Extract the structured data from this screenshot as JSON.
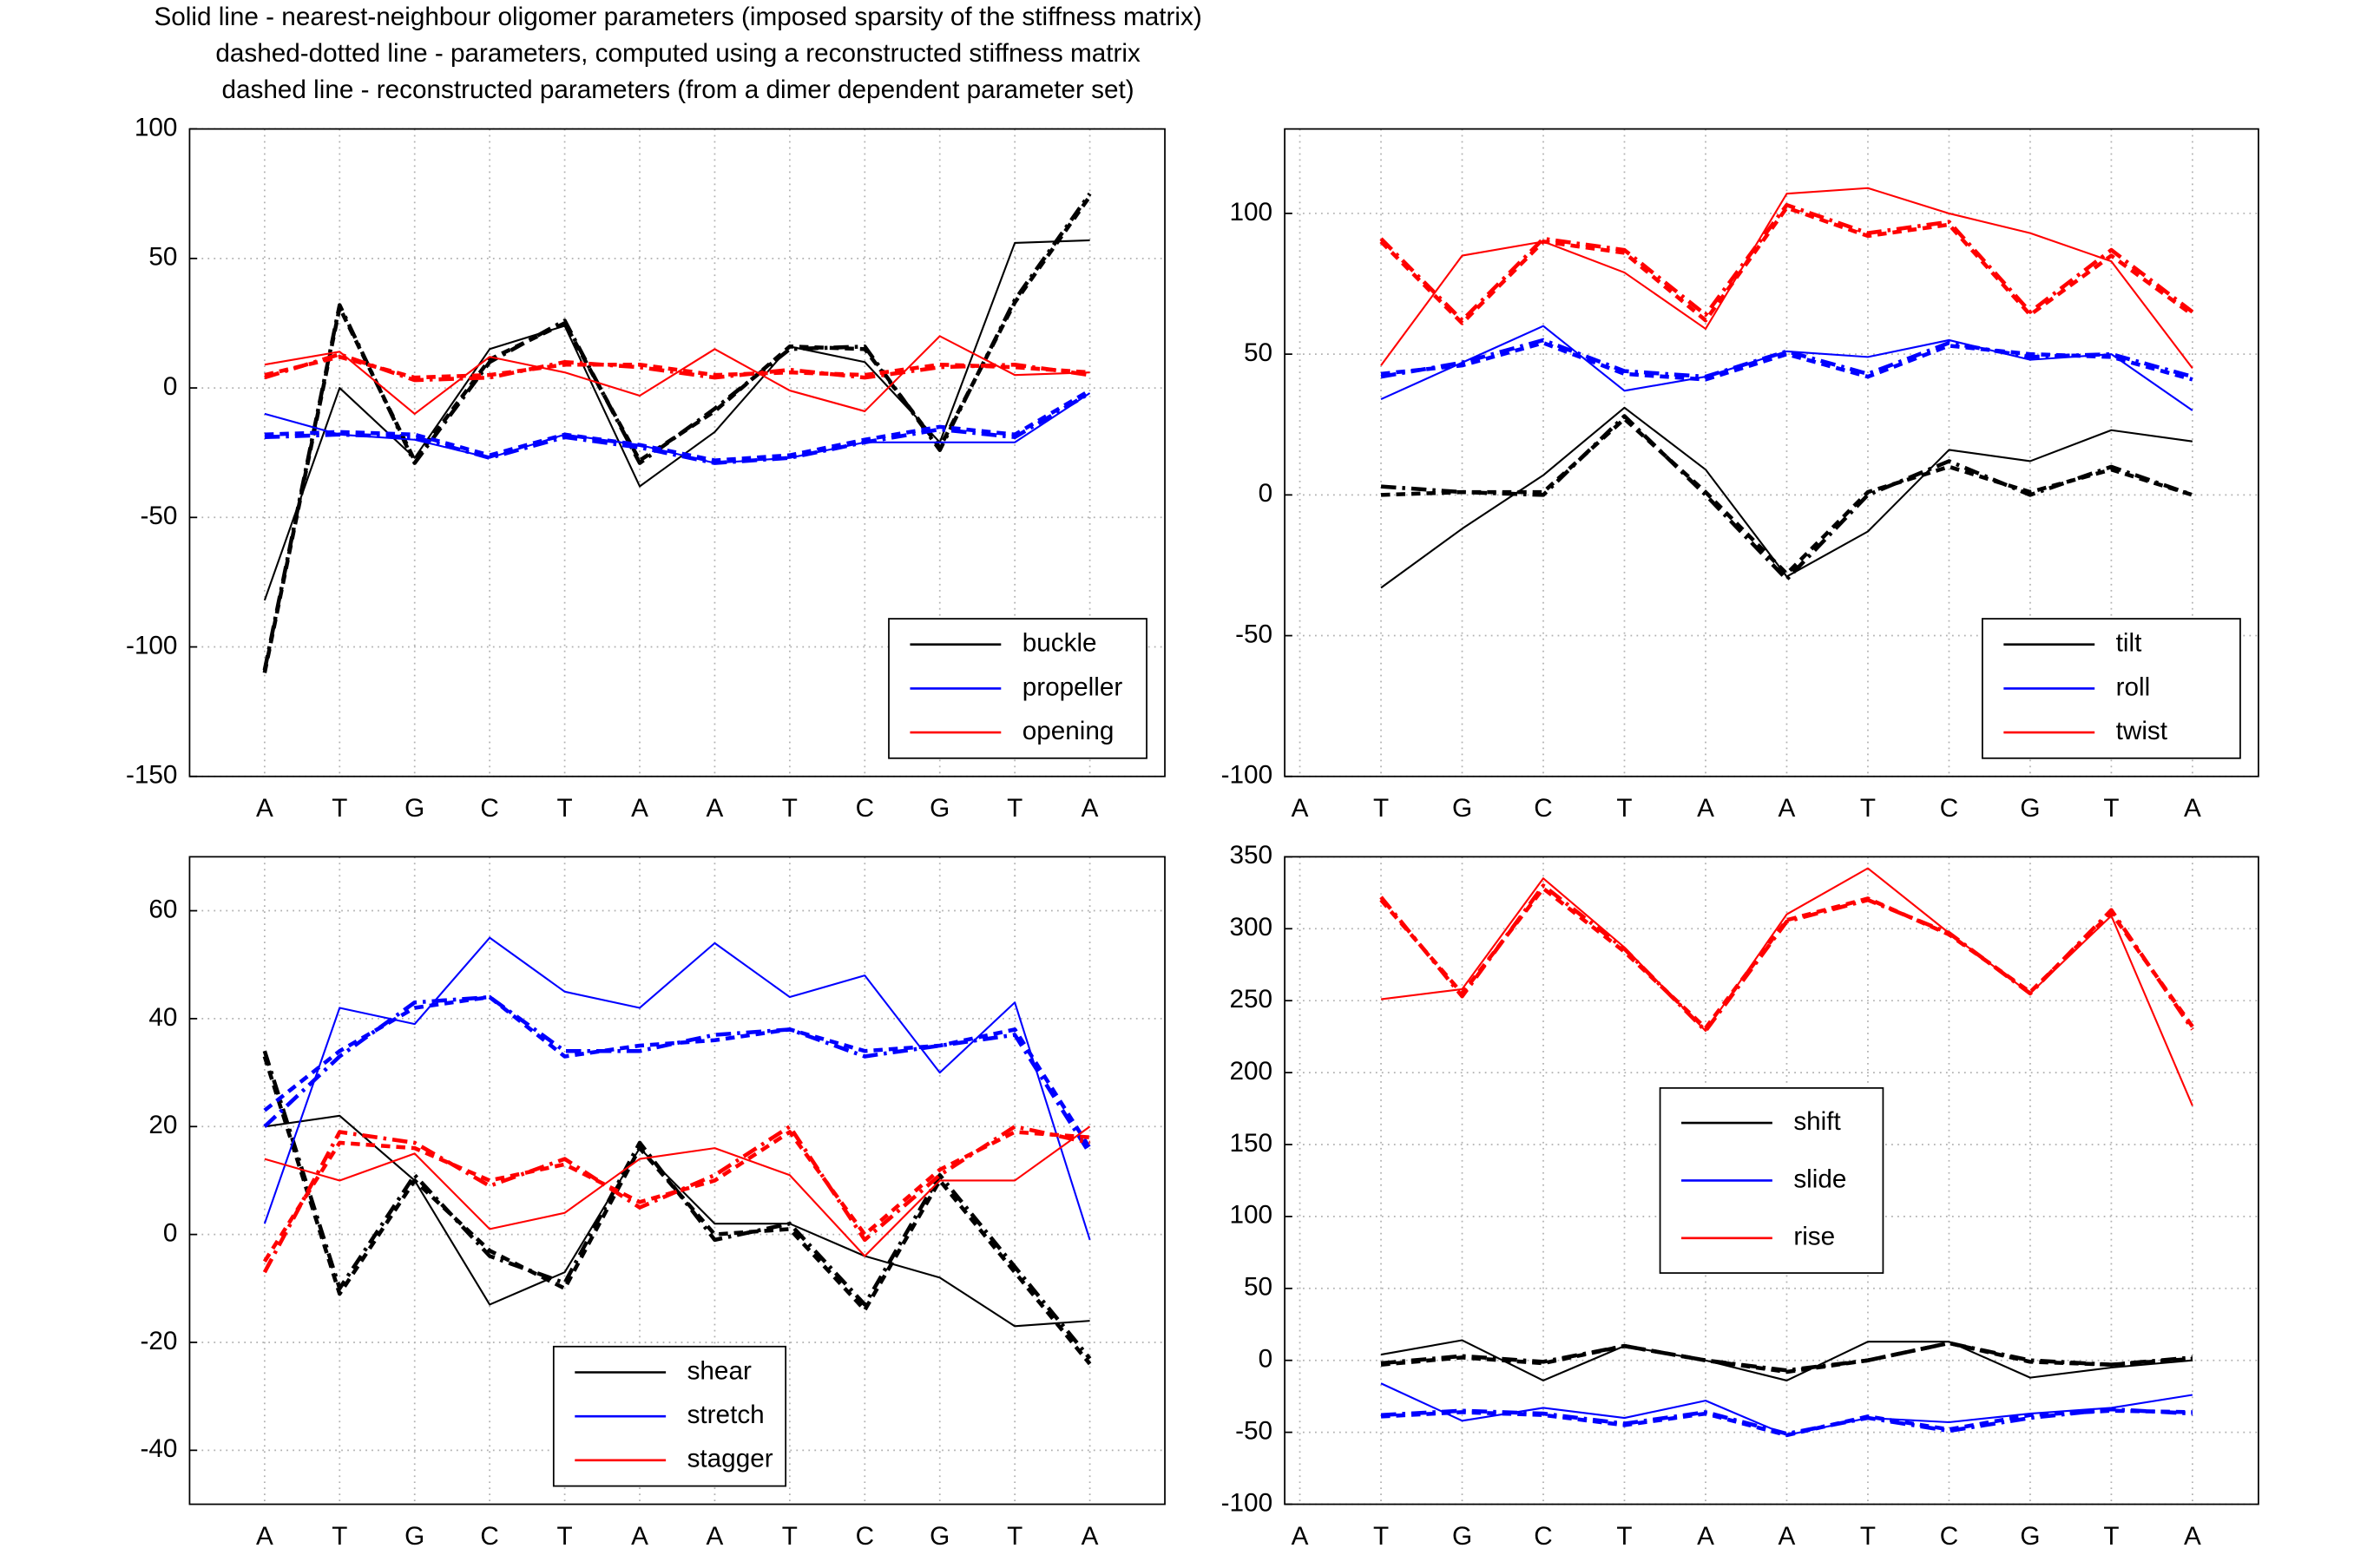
{
  "figure_title": [
    "Solid line - nearest-neighbour oligomer parameters (imposed sparsity of the stiffness matrix)",
    "dashed-dotted line - parameters, computed using a reconstructed stiffness matrix",
    "dashed line - reconstructed parameters (from a dimer dependent parameter set)"
  ],
  "chart_data": [
    {
      "type": "line",
      "categories": [
        "A",
        "T",
        "G",
        "C",
        "T",
        "A",
        "A",
        "T",
        "C",
        "G",
        "T",
        "A"
      ],
      "ylim": [
        -150,
        100
      ],
      "yticks": [
        -150,
        -100,
        -50,
        0,
        50,
        100
      ],
      "grid": true,
      "legend": "lower right",
      "series": [
        {
          "name": "buckle",
          "color": "#000000",
          "values": [
            -82,
            0,
            -27,
            15,
            24,
            -38,
            -17,
            16,
            10,
            -21,
            56,
            57
          ],
          "values_dashdot": [
            -109,
            32,
            -29,
            10,
            26,
            -29,
            -8,
            15,
            16,
            -24,
            34,
            75
          ],
          "values_dashed": [
            -110,
            31,
            -28,
            11,
            25,
            -28,
            -9,
            16,
            15,
            -23,
            33,
            74
          ]
        },
        {
          "name": "propeller",
          "color": "#0000ff",
          "values": [
            -10,
            -18,
            -20,
            -27,
            -18,
            -22,
            -29,
            -27,
            -21,
            -21,
            -21,
            -2
          ],
          "values_dashdot": [
            -19,
            -18,
            -19,
            -27,
            -19,
            -23,
            -29,
            -27,
            -21,
            -16,
            -19,
            -2
          ],
          "values_dashed": [
            -18,
            -17,
            -18,
            -26,
            -18,
            -22,
            -28,
            -26,
            -20,
            -15,
            -18,
            -1
          ]
        },
        {
          "name": "opening",
          "color": "#ff0000",
          "values": [
            9,
            14,
            -10,
            12,
            6,
            -3,
            15,
            -1,
            -9,
            20,
            5,
            6
          ],
          "values_dashdot": [
            4,
            13,
            3,
            4,
            10,
            8,
            4,
            7,
            4,
            8,
            9,
            5
          ],
          "values_dashed": [
            5,
            12,
            4,
            5,
            9,
            9,
            5,
            6,
            5,
            9,
            8,
            6
          ]
        }
      ]
    },
    {
      "type": "line",
      "categories": [
        "A",
        "T",
        "G",
        "C",
        "T",
        "A",
        "A",
        "T",
        "C",
        "G",
        "T",
        "A"
      ],
      "ylim": [
        -100,
        130
      ],
      "yticks": [
        -100,
        -50,
        0,
        50,
        100
      ],
      "grid": true,
      "legend": "lower right",
      "series": [
        {
          "name": "tilt",
          "color": "#000000",
          "values": [
            null,
            -33,
            -12,
            7,
            31,
            9,
            -29,
            -13,
            16,
            12,
            23,
            19
          ],
          "values_dashdot": [
            null,
            3,
            1,
            0,
            28,
            0,
            -30,
            0,
            12,
            0,
            10,
            0
          ],
          "values_dashed": [
            null,
            0,
            1,
            1,
            27,
            1,
            -28,
            1,
            10,
            1,
            9,
            0
          ]
        },
        {
          "name": "roll",
          "color": "#0000ff",
          "values": [
            null,
            34,
            47,
            60,
            37,
            42,
            51,
            49,
            55,
            48,
            50,
            30
          ],
          "values_dashdot": [
            null,
            42,
            47,
            55,
            44,
            42,
            51,
            43,
            54,
            49,
            50,
            42
          ],
          "values_dashed": [
            null,
            43,
            46,
            54,
            43,
            41,
            50,
            42,
            53,
            50,
            49,
            41
          ]
        },
        {
          "name": "twist",
          "color": "#ff0000",
          "values": [
            null,
            46,
            85,
            90,
            79,
            59,
            107,
            109,
            100,
            93,
            83,
            45
          ],
          "values_dashdot": [
            null,
            91,
            62,
            91,
            87,
            64,
            103,
            93,
            97,
            65,
            87,
            65
          ],
          "values_dashed": [
            null,
            90,
            61,
            90,
            86,
            62,
            102,
            92,
            96,
            64,
            85,
            64
          ]
        }
      ]
    },
    {
      "type": "line",
      "categories": [
        "A",
        "T",
        "G",
        "C",
        "T",
        "A",
        "A",
        "T",
        "C",
        "G",
        "T",
        "A"
      ],
      "ylim": [
        -50,
        70
      ],
      "yticks": [
        -40,
        -20,
        0,
        20,
        40,
        60
      ],
      "grid": true,
      "legend": "lower center",
      "series": [
        {
          "name": "shear",
          "color": "#000000",
          "values": [
            20,
            22,
            10,
            -13,
            -7,
            16,
            2,
            2,
            -4,
            -8,
            -17,
            -16
          ],
          "values_dashdot": [
            34,
            -10,
            11,
            -4,
            -9,
            17,
            -1,
            2,
            -13,
            11,
            -6,
            -23
          ],
          "values_dashed": [
            33,
            -11,
            10,
            -3,
            -10,
            16,
            0,
            1,
            -14,
            10,
            -7,
            -24
          ]
        },
        {
          "name": "stretch",
          "color": "#0000ff",
          "values": [
            2,
            42,
            39,
            55,
            45,
            42,
            54,
            44,
            48,
            30,
            43,
            -1
          ],
          "values_dashdot": [
            20,
            33,
            43,
            44,
            34,
            34,
            37,
            38,
            33,
            35,
            37,
            15
          ],
          "values_dashed": [
            23,
            34,
            42,
            44,
            33,
            35,
            36,
            38,
            34,
            35,
            38,
            16
          ]
        },
        {
          "name": "stagger",
          "color": "#ff0000",
          "values": [
            14,
            10,
            15,
            1,
            4,
            14,
            16,
            11,
            -4,
            10,
            10,
            20
          ],
          "values_dashdot": [
            -7,
            19,
            17,
            9,
            14,
            5,
            11,
            20,
            -1,
            11,
            20,
            17
          ],
          "values_dashed": [
            -5,
            17,
            16,
            10,
            13,
            6,
            10,
            19,
            0,
            12,
            19,
            18
          ]
        }
      ]
    },
    {
      "type": "line",
      "categories": [
        "A",
        "T",
        "G",
        "C",
        "T",
        "A",
        "A",
        "T",
        "C",
        "G",
        "T",
        "A"
      ],
      "ylim": [
        -100,
        350
      ],
      "yticks": [
        -100,
        -50,
        0,
        50,
        100,
        150,
        200,
        250,
        300,
        350
      ],
      "grid": true,
      "legend": "center",
      "series": [
        {
          "name": "shift",
          "color": "#000000",
          "values": [
            null,
            4,
            14,
            -14,
            10,
            0,
            -14,
            13,
            13,
            -12,
            -5,
            0
          ],
          "values_dashdot": [
            null,
            -2,
            3,
            -1,
            10,
            0,
            -7,
            0,
            12,
            0,
            -3,
            2
          ],
          "values_dashed": [
            null,
            -3,
            2,
            -2,
            10,
            0,
            -8,
            0,
            12,
            -1,
            -3,
            1
          ]
        },
        {
          "name": "slide",
          "color": "#0000ff",
          "values": [
            null,
            -16,
            -42,
            -33,
            -40,
            -28,
            -52,
            -40,
            -43,
            -37,
            -33,
            -24
          ],
          "values_dashdot": [
            null,
            -38,
            -35,
            -37,
            -44,
            -36,
            -51,
            -40,
            -49,
            -40,
            -34,
            -37
          ],
          "values_dashed": [
            null,
            -39,
            -36,
            -38,
            -45,
            -37,
            -52,
            -39,
            -48,
            -38,
            -35,
            -36
          ]
        },
        {
          "name": "rise",
          "color": "#ff0000",
          "values": [
            null,
            251,
            258,
            335,
            287,
            229,
            310,
            342,
            297,
            255,
            309,
            177
          ],
          "values_dashdot": [
            null,
            322,
            253,
            330,
            286,
            229,
            305,
            320,
            297,
            255,
            313,
            230
          ],
          "values_dashed": [
            null,
            320,
            255,
            328,
            284,
            231,
            306,
            321,
            296,
            256,
            311,
            232
          ]
        }
      ]
    }
  ]
}
